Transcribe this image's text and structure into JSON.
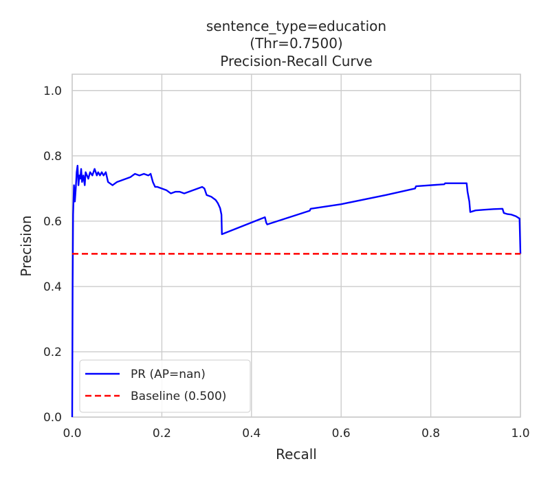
{
  "chart_data": {
    "type": "line",
    "title_lines": [
      "sentence_type=education",
      "(Thr=0.7500)",
      "Precision-Recall Curve"
    ],
    "xlabel": "Recall",
    "ylabel": "Precision",
    "xlim": [
      0.0,
      1.0
    ],
    "ylim": [
      0.0,
      1.05
    ],
    "x_ticks": [
      "0.0",
      "0.2",
      "0.4",
      "0.6",
      "0.8",
      "1.0"
    ],
    "y_ticks": [
      "0.0",
      "0.2",
      "0.4",
      "0.6",
      "0.8",
      "1.0"
    ],
    "grid": true,
    "legend_position": "lower-left",
    "series": [
      {
        "name": "PR (AP=nan)",
        "color": "#0000ff",
        "style": "solid",
        "x": [
          0.0,
          0.001,
          0.002,
          0.004,
          0.006,
          0.008,
          0.01,
          0.012,
          0.014,
          0.016,
          0.018,
          0.02,
          0.022,
          0.025,
          0.028,
          0.03,
          0.033,
          0.036,
          0.04,
          0.045,
          0.05,
          0.055,
          0.058,
          0.062,
          0.066,
          0.07,
          0.075,
          0.08,
          0.09,
          0.1,
          0.11,
          0.12,
          0.13,
          0.14,
          0.15,
          0.16,
          0.17,
          0.175,
          0.18,
          0.185,
          0.19,
          0.2,
          0.21,
          0.22,
          0.23,
          0.24,
          0.25,
          0.26,
          0.27,
          0.28,
          0.29,
          0.295,
          0.3,
          0.31,
          0.32,
          0.325,
          0.33,
          0.333,
          0.334,
          0.43,
          0.433,
          0.435,
          0.53,
          0.532,
          0.6,
          0.7,
          0.765,
          0.767,
          0.83,
          0.832,
          0.88,
          0.882,
          0.886,
          0.888,
          0.9,
          0.92,
          0.94,
          0.96,
          0.963,
          0.97,
          0.98,
          0.99,
          0.998,
          1.0
        ],
        "y": [
          0.0,
          0.4,
          0.62,
          0.71,
          0.66,
          0.7,
          0.75,
          0.77,
          0.71,
          0.74,
          0.73,
          0.76,
          0.72,
          0.74,
          0.71,
          0.75,
          0.74,
          0.73,
          0.75,
          0.74,
          0.76,
          0.74,
          0.75,
          0.74,
          0.75,
          0.74,
          0.75,
          0.72,
          0.71,
          0.72,
          0.725,
          0.73,
          0.735,
          0.745,
          0.74,
          0.745,
          0.74,
          0.745,
          0.72,
          0.705,
          0.705,
          0.7,
          0.695,
          0.685,
          0.69,
          0.69,
          0.685,
          0.69,
          0.695,
          0.7,
          0.705,
          0.7,
          0.68,
          0.675,
          0.665,
          0.655,
          0.64,
          0.62,
          0.56,
          0.612,
          0.595,
          0.59,
          0.632,
          0.638,
          0.652,
          0.68,
          0.7,
          0.707,
          0.713,
          0.716,
          0.716,
          0.69,
          0.66,
          0.628,
          0.633,
          0.635,
          0.637,
          0.638,
          0.625,
          0.622,
          0.62,
          0.615,
          0.608,
          0.5
        ]
      },
      {
        "name": "Baseline (0.500)",
        "color": "#ff0000",
        "style": "dashed",
        "x": [
          0.0,
          1.0
        ],
        "y": [
          0.5,
          0.5
        ]
      }
    ]
  }
}
